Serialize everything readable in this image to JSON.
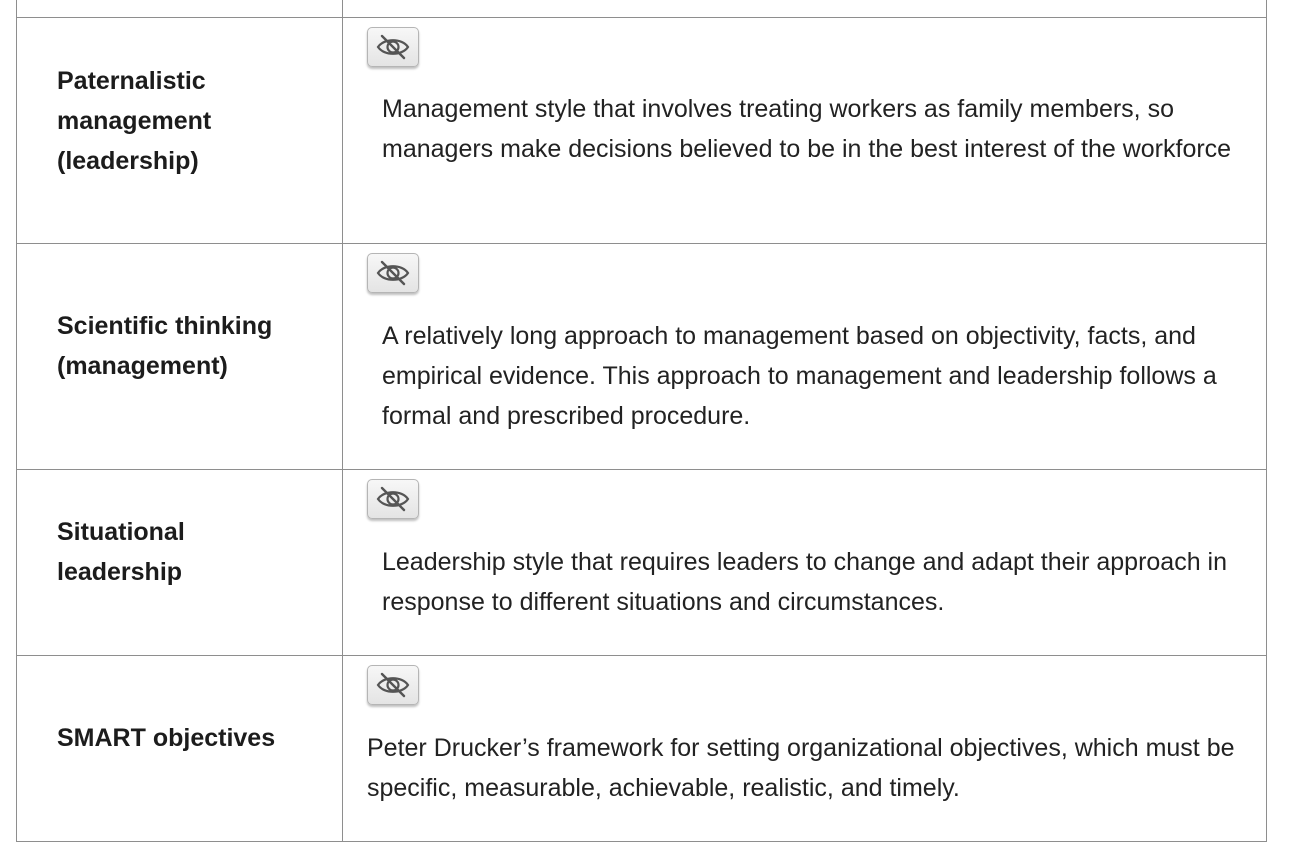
{
  "glossary": {
    "rows": [
      {
        "term": "Paternalistic management (leadership)",
        "definition": "Management style that involves treating workers as family members, so managers make decisions believed to be in the best interest of the workforce",
        "toggle_icon": "eye-slash-icon"
      },
      {
        "term": "Scientific thinking (management)",
        "definition": "A relatively long approach to management based on objectivity, facts, and empirical evidence. This approach to management and leadership follows a formal and prescribed procedure.",
        "toggle_icon": "eye-slash-icon"
      },
      {
        "term": "Situational leadership",
        "definition": "Leadership style that requires leaders to change and adapt their approach in response to different situations and circumstances.",
        "toggle_icon": "eye-slash-icon"
      },
      {
        "term": "SMART objectives",
        "definition": "Peter Drucker’s framework for setting organizational objectives, which must be specific, measurable, achievable, realistic, and timely.",
        "toggle_icon": "eye-slash-icon"
      }
    ]
  },
  "colors": {
    "border": "#8e8e8e",
    "text": "#222222",
    "button_bg": "#eeeeee",
    "icon": "#555555"
  }
}
